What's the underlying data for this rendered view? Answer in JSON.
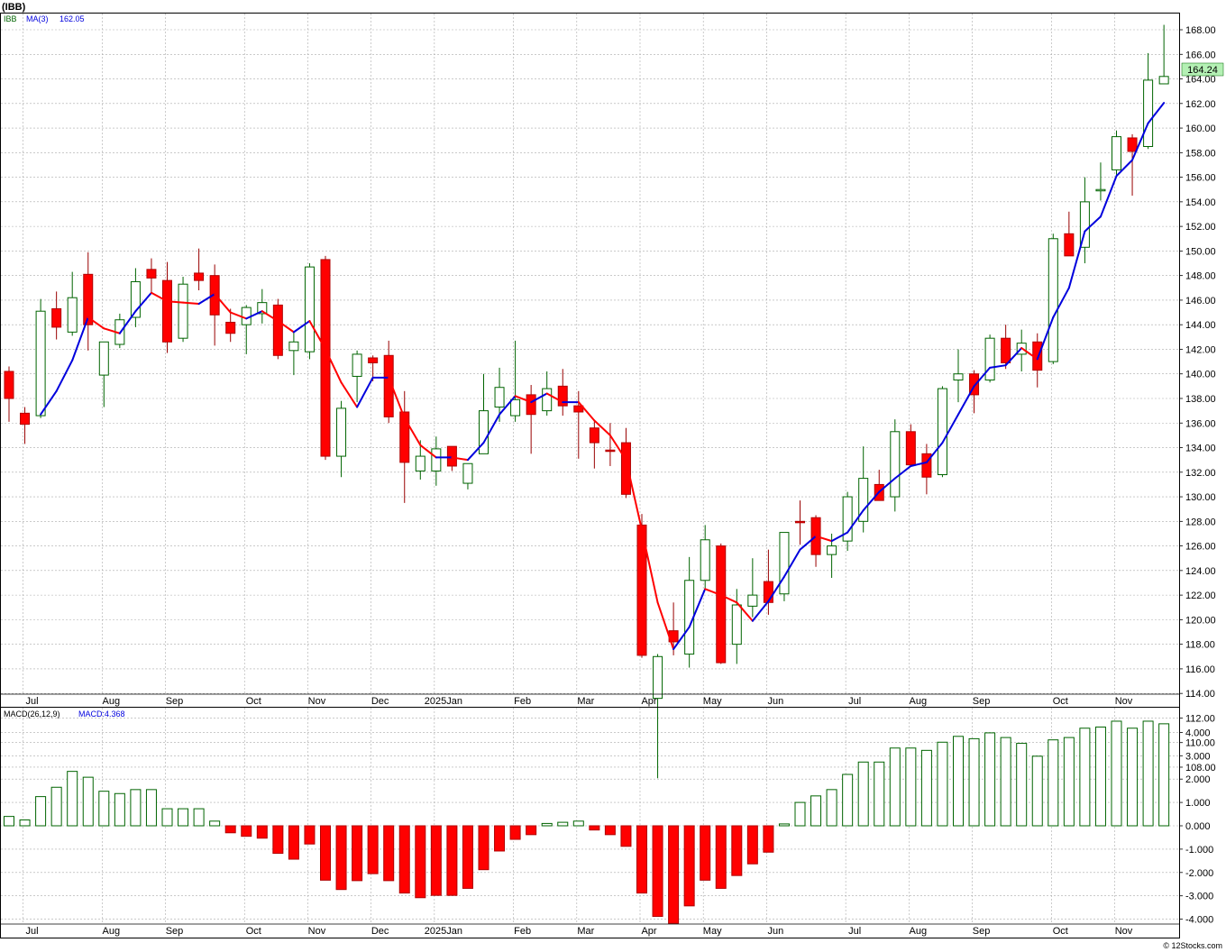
{
  "header": {
    "title": "(IBB)",
    "ticker": "IBB",
    "ma_label": "MA(3)",
    "ma_value": "162.05",
    "last_price": "164.24",
    "macd_label": "MACD(26,12,9)",
    "macd_value_label": "MACD:4.368",
    "footer": "© 12Stocks.com"
  },
  "colors": {
    "up_candle_fill": "#ffffff",
    "up_candle_stroke": "#006400",
    "down_candle": "#ff0000",
    "ma_up": "#0000dd",
    "ma_down": "#ff0000",
    "macd_positive_stroke": "#006400",
    "macd_negative": "#ff0000",
    "grid": "#aaaaaa",
    "price_badge_bg": "#b4f0b4",
    "axis_text": "#000000"
  },
  "chart_data": [
    {
      "type": "candlestick",
      "title": "(IBB)",
      "ylabel": "",
      "ylim": [
        107,
        169.5
      ],
      "ytick_labels": [
        "108.00",
        "110.00",
        "112.00",
        "114.00",
        "116.00",
        "118.00",
        "120.00",
        "122.00",
        "124.00",
        "126.00",
        "128.00",
        "130.00",
        "132.00",
        "134.00",
        "136.00",
        "138.00",
        "140.00",
        "142.00",
        "144.00",
        "146.00",
        "148.00",
        "150.00",
        "152.00",
        "154.00",
        "156.00",
        "158.00",
        "160.00",
        "162.00",
        "164.00",
        "166.00",
        "168.00"
      ],
      "x_month_labels": [
        "Jul",
        "Aug",
        "Sep",
        "Oct",
        "Nov",
        "Dec",
        "2025Jan",
        "Feb",
        "Mar",
        "Apr",
        "May",
        "Jun",
        "Jul",
        "Aug",
        "Sep",
        "Oct",
        "Nov"
      ],
      "x_month_start_week": [
        1,
        6,
        10,
        15,
        19,
        23,
        27,
        32,
        36,
        40,
        44,
        48,
        53,
        57,
        61,
        66,
        70
      ],
      "grid": true,
      "series": [
        {
          "name": "IBB",
          "ohlc": [
            [
              140.2,
              140.6,
              136.1,
              138.0
            ],
            [
              136.8,
              137.3,
              134.3,
              135.9
            ],
            [
              136.6,
              146.1,
              136.4,
              145.1
            ],
            [
              145.3,
              146.7,
              142.8,
              143.8
            ],
            [
              143.4,
              148.3,
              143.1,
              146.2
            ],
            [
              148.1,
              149.9,
              141.9,
              144.0
            ],
            [
              139.9,
              142.5,
              137.3,
              142.6
            ],
            [
              142.4,
              144.9,
              142.1,
              144.4
            ],
            [
              144.6,
              148.6,
              143.8,
              147.5
            ],
            [
              148.5,
              149.4,
              146.5,
              147.8
            ],
            [
              147.6,
              149.1,
              141.7,
              142.6
            ],
            [
              142.9,
              147.9,
              142.6,
              147.3
            ],
            [
              148.2,
              150.2,
              146.8,
              147.6
            ],
            [
              148.0,
              148.9,
              142.3,
              144.8
            ],
            [
              144.2,
              145.3,
              142.6,
              143.3
            ],
            [
              144.0,
              145.6,
              141.6,
              145.4
            ],
            [
              144.9,
              146.9,
              144.1,
              145.8
            ],
            [
              145.6,
              146.1,
              141.2,
              141.5
            ],
            [
              141.9,
              143.4,
              139.9,
              142.6
            ],
            [
              141.8,
              149.0,
              141.2,
              148.7
            ],
            [
              149.3,
              149.6,
              133.0,
              133.3
            ],
            [
              133.3,
              137.8,
              131.6,
              137.2
            ],
            [
              139.8,
              141.9,
              137.7,
              141.6
            ],
            [
              141.3,
              141.5,
              139.4,
              140.9
            ],
            [
              141.5,
              142.7,
              136.0,
              136.5
            ],
            [
              136.9,
              138.6,
              129.5,
              132.8
            ],
            [
              132.1,
              134.6,
              131.4,
              133.3
            ],
            [
              132.1,
              134.9,
              130.9,
              133.9
            ],
            [
              134.1,
              134.1,
              132.1,
              132.5
            ],
            [
              131.1,
              132.4,
              130.6,
              132.7
            ],
            [
              133.5,
              140.0,
              133.5,
              137.0
            ],
            [
              137.3,
              140.5,
              136.1,
              138.9
            ],
            [
              136.6,
              142.7,
              136.1,
              137.9
            ],
            [
              138.3,
              139.1,
              133.5,
              136.7
            ],
            [
              137.0,
              140.2,
              136.6,
              138.8
            ],
            [
              139.0,
              140.4,
              136.6,
              137.4
            ],
            [
              137.4,
              138.6,
              133.1,
              136.9
            ],
            [
              135.6,
              136.2,
              132.3,
              134.4
            ],
            [
              133.8,
              136.0,
              132.5,
              133.7
            ],
            [
              134.4,
              135.6,
              129.9,
              130.2
            ],
            [
              127.7,
              128.6,
              116.9,
              117.1
            ],
            [
              113.6,
              117.2,
              107.1,
              117.0
            ],
            [
              119.1,
              121.4,
              117.1,
              118.2
            ],
            [
              117.2,
              125.1,
              116.1,
              123.2
            ],
            [
              123.2,
              127.7,
              122.5,
              126.5
            ],
            [
              126.0,
              126.2,
              116.4,
              116.5
            ],
            [
              118.0,
              122.5,
              116.4,
              121.2
            ],
            [
              121.1,
              125.0,
              120.2,
              122.0
            ],
            [
              123.1,
              125.7,
              120.4,
              121.4
            ],
            [
              122.1,
              127.0,
              121.5,
              127.1
            ],
            [
              128.0,
              129.7,
              126.1,
              127.9
            ],
            [
              128.3,
              128.5,
              124.3,
              125.3
            ],
            [
              125.3,
              127.0,
              123.4,
              126.0
            ],
            [
              126.4,
              130.4,
              125.6,
              130.0
            ],
            [
              128.0,
              134.1,
              127.1,
              131.5
            ],
            [
              131.0,
              132.2,
              129.9,
              129.7
            ],
            [
              130.0,
              136.3,
              128.8,
              135.3
            ],
            [
              135.3,
              135.9,
              132.8,
              132.6
            ],
            [
              133.5,
              134.3,
              130.2,
              131.6
            ],
            [
              131.8,
              139.0,
              131.6,
              138.8
            ],
            [
              139.5,
              142.0,
              137.7,
              140.0
            ],
            [
              140.0,
              140.3,
              136.8,
              138.3
            ],
            [
              139.5,
              143.2,
              139.3,
              142.9
            ],
            [
              142.9,
              144.0,
              140.4,
              140.9
            ],
            [
              141.6,
              143.6,
              140.2,
              142.5
            ],
            [
              142.6,
              143.3,
              138.9,
              140.3
            ],
            [
              141.0,
              151.4,
              140.8,
              151.0
            ],
            [
              151.4,
              153.2,
              149.8,
              149.6
            ],
            [
              150.3,
              156.0,
              149.0,
              154.0
            ],
            [
              155.0,
              157.2,
              154.1,
              155.0
            ],
            [
              156.6,
              159.8,
              156.2,
              159.3
            ],
            [
              159.2,
              159.5,
              154.5,
              158.1
            ],
            [
              158.5,
              166.1,
              158.3,
              163.9
            ],
            [
              163.6,
              168.4,
              163.6,
              164.2
            ]
          ]
        },
        {
          "name": "MA(3)",
          "values": [
            null,
            null,
            136.7,
            138.6,
            141.1,
            144.6,
            143.7,
            143.3,
            145.1,
            146.6,
            145.9,
            145.8,
            145.7,
            146.5,
            145.0,
            144.5,
            145.1,
            144.3,
            143.4,
            144.3,
            142.0,
            139.3,
            137.3,
            139.7,
            139.7,
            136.4,
            134.2,
            133.2,
            133.2,
            133.0,
            134.4,
            136.7,
            138.2,
            137.7,
            138.4,
            137.7,
            137.7,
            136.2,
            135.0,
            133.0,
            127.3,
            121.4,
            117.6,
            119.4,
            122.5,
            122.0,
            121.4,
            119.9,
            121.5,
            123.5,
            125.7,
            126.8,
            126.4,
            127.1,
            128.9,
            130.4,
            131.5,
            132.5,
            132.8,
            134.4,
            136.7,
            139.0,
            140.5,
            140.7,
            142.1,
            141.2,
            144.6,
            147.0,
            151.6,
            152.8,
            156.1,
            157.4,
            160.4,
            162.05
          ]
        }
      ]
    },
    {
      "type": "bar",
      "title": "MACD(26,12,9)",
      "ylabel": "",
      "ylim": [
        -4.35,
        5.0
      ],
      "ytick_labels": [
        "-4.000",
        "-3.000",
        "-2.000",
        "-1.000",
        "0.000",
        "1.000",
        "2.000",
        "3.000",
        "4.000"
      ],
      "x_month_labels": [
        "Jul",
        "Aug",
        "Sep",
        "Oct",
        "Nov",
        "Dec",
        "2025Jan",
        "Feb",
        "Mar",
        "Apr",
        "May",
        "Jun",
        "Jul",
        "Aug",
        "Sep",
        "Oct",
        "Nov"
      ],
      "series": [
        {
          "name": "MACD",
          "values": [
            0.4,
            0.25,
            1.25,
            1.65,
            2.33,
            2.08,
            1.48,
            1.38,
            1.55,
            1.55,
            0.73,
            0.73,
            0.73,
            0.2,
            -0.3,
            -0.45,
            -0.53,
            -1.18,
            -1.43,
            -0.78,
            -2.33,
            -2.73,
            -2.35,
            -2.05,
            -2.35,
            -2.88,
            -3.08,
            -2.98,
            -2.98,
            -2.68,
            -1.88,
            -1.08,
            -0.58,
            -0.38,
            0.1,
            0.15,
            0.2,
            -0.18,
            -0.38,
            -0.88,
            -2.88,
            -3.88,
            -4.18,
            -3.43,
            -2.33,
            -2.68,
            -2.13,
            -1.63,
            -1.13,
            0.08,
            1.0,
            1.28,
            1.55,
            2.2,
            2.73,
            2.73,
            3.33,
            3.33,
            3.23,
            3.58,
            3.83,
            3.73,
            3.98,
            3.78,
            3.53,
            2.98,
            3.68,
            3.78,
            4.18,
            4.23,
            4.48,
            4.18,
            4.48,
            4.368
          ]
        }
      ]
    }
  ]
}
